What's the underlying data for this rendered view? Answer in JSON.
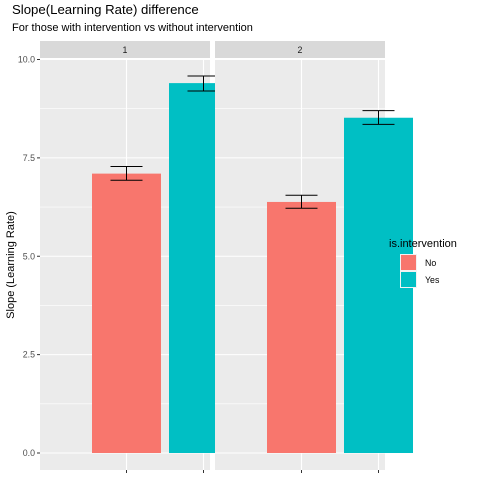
{
  "chart_data": {
    "type": "bar",
    "title": "Slope(Learning Rate) difference",
    "subtitle": "For those with intervention vs without intervention",
    "xlabel": "",
    "ylabel": "Slope (Learning Rate)",
    "ylim": [
      0,
      10
    ],
    "yticks": [
      "0.0",
      "2.5",
      "5.0",
      "7.5",
      "10.0"
    ],
    "facet_variable": "",
    "panels": [
      {
        "label": "1",
        "bars": [
          {
            "group": "No",
            "value": 7.1,
            "err_low": 6.93,
            "err_high": 7.28
          },
          {
            "group": "Yes",
            "value": 9.4,
            "err_low": 9.2,
            "err_high": 9.58
          }
        ]
      },
      {
        "label": "2",
        "bars": [
          {
            "group": "No",
            "value": 6.38,
            "err_low": 6.22,
            "err_high": 6.55
          },
          {
            "group": "Yes",
            "value": 8.52,
            "err_low": 8.35,
            "err_high": 8.7
          }
        ]
      }
    ],
    "x_tick_labels": [
      "",
      ""
    ],
    "legend": {
      "title": "is.intervention",
      "position": "right",
      "entries": [
        {
          "label": "No",
          "color": "#F8766D"
        },
        {
          "label": "Yes",
          "color": "#00BFC4"
        }
      ]
    },
    "grid": true,
    "panel_background": "#EBEBEB",
    "strip_background": "#D9D9D9"
  }
}
